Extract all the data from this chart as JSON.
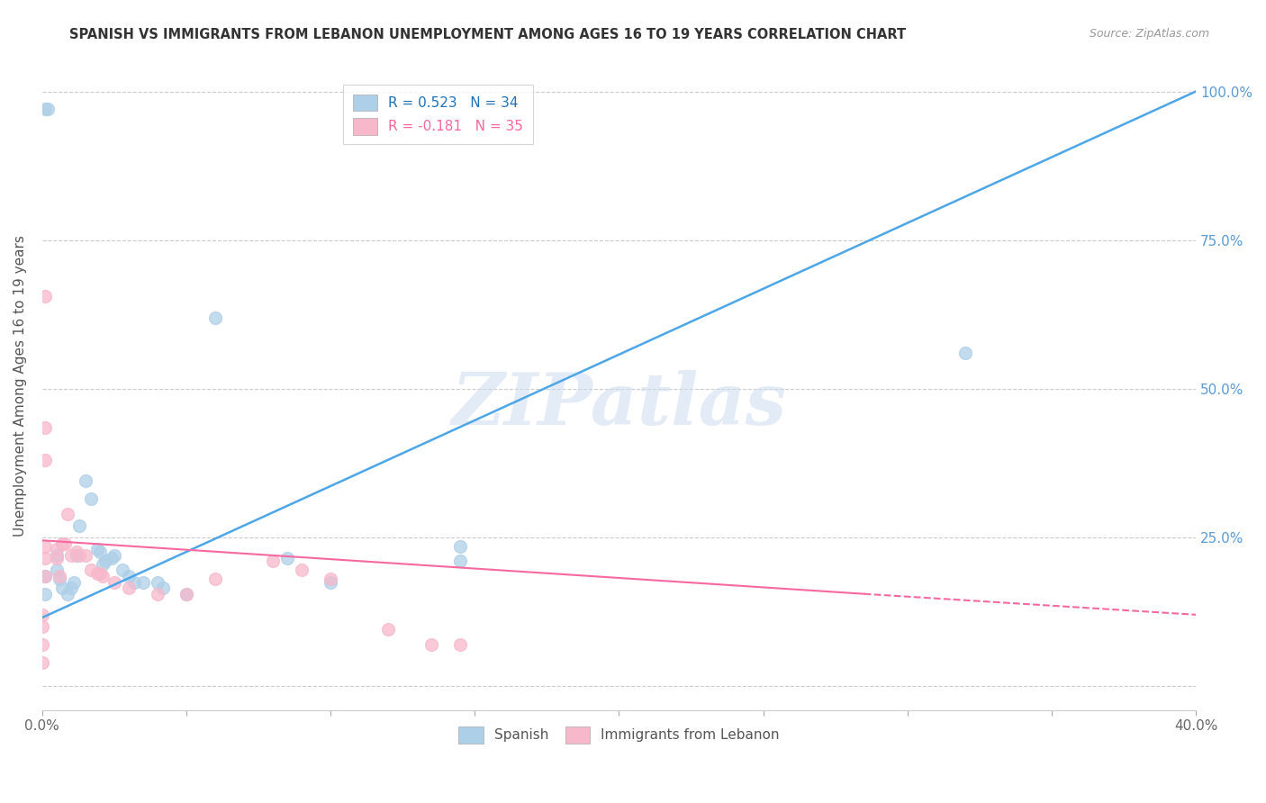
{
  "title": "SPANISH VS IMMIGRANTS FROM LEBANON UNEMPLOYMENT AMONG AGES 16 TO 19 YEARS CORRELATION CHART",
  "source": "Source: ZipAtlas.com",
  "ylabel": "Unemployment Among Ages 16 to 19 years",
  "xlim": [
    0.0,
    0.4
  ],
  "ylim": [
    -0.04,
    1.05
  ],
  "xticks": [
    0.0,
    0.05,
    0.1,
    0.15,
    0.2,
    0.25,
    0.3,
    0.35,
    0.4
  ],
  "xticklabels": [
    "0.0%",
    "",
    "",
    "",
    "",
    "",
    "",
    "",
    "40.0%"
  ],
  "yticks_right": [
    0.0,
    0.25,
    0.5,
    0.75,
    1.0
  ],
  "yticklabels_right": [
    "",
    "25.0%",
    "50.0%",
    "75.0%",
    "100.0%"
  ],
  "legend_entry1": "R = 0.523   N = 34",
  "legend_entry2": "R = -0.181   N = 35",
  "spanish_color": "#aecfe8",
  "lebanon_color": "#f7b8cb",
  "regression_blue_color": "#4da6e8",
  "regression_pink_color": "#f768a1",
  "watermark": "ZIPatlas",
  "spanish_points": [
    [
      0.001,
      0.185
    ],
    [
      0.001,
      0.155
    ],
    [
      0.001,
      0.97
    ],
    [
      0.002,
      0.97
    ],
    [
      0.005,
      0.22
    ],
    [
      0.005,
      0.195
    ],
    [
      0.006,
      0.18
    ],
    [
      0.007,
      0.165
    ],
    [
      0.009,
      0.155
    ],
    [
      0.01,
      0.165
    ],
    [
      0.011,
      0.175
    ],
    [
      0.012,
      0.22
    ],
    [
      0.013,
      0.27
    ],
    [
      0.015,
      0.345
    ],
    [
      0.017,
      0.315
    ],
    [
      0.019,
      0.23
    ],
    [
      0.02,
      0.225
    ],
    [
      0.021,
      0.205
    ],
    [
      0.022,
      0.21
    ],
    [
      0.024,
      0.215
    ],
    [
      0.025,
      0.22
    ],
    [
      0.028,
      0.195
    ],
    [
      0.03,
      0.185
    ],
    [
      0.032,
      0.175
    ],
    [
      0.035,
      0.175
    ],
    [
      0.04,
      0.175
    ],
    [
      0.042,
      0.165
    ],
    [
      0.05,
      0.155
    ],
    [
      0.06,
      0.62
    ],
    [
      0.085,
      0.215
    ],
    [
      0.1,
      0.175
    ],
    [
      0.145,
      0.21
    ],
    [
      0.145,
      0.235
    ],
    [
      0.32,
      0.56
    ]
  ],
  "lebanon_points": [
    [
      0.0,
      0.04
    ],
    [
      0.0,
      0.07
    ],
    [
      0.0,
      0.1
    ],
    [
      0.0,
      0.12
    ],
    [
      0.001,
      0.185
    ],
    [
      0.001,
      0.215
    ],
    [
      0.001,
      0.235
    ],
    [
      0.001,
      0.38
    ],
    [
      0.001,
      0.435
    ],
    [
      0.001,
      0.655
    ],
    [
      0.005,
      0.215
    ],
    [
      0.005,
      0.23
    ],
    [
      0.006,
      0.185
    ],
    [
      0.007,
      0.24
    ],
    [
      0.008,
      0.24
    ],
    [
      0.009,
      0.29
    ],
    [
      0.01,
      0.22
    ],
    [
      0.012,
      0.225
    ],
    [
      0.013,
      0.22
    ],
    [
      0.015,
      0.22
    ],
    [
      0.017,
      0.195
    ],
    [
      0.019,
      0.19
    ],
    [
      0.02,
      0.19
    ],
    [
      0.021,
      0.185
    ],
    [
      0.025,
      0.175
    ],
    [
      0.03,
      0.165
    ],
    [
      0.04,
      0.155
    ],
    [
      0.05,
      0.155
    ],
    [
      0.06,
      0.18
    ],
    [
      0.08,
      0.21
    ],
    [
      0.09,
      0.195
    ],
    [
      0.1,
      0.18
    ],
    [
      0.12,
      0.095
    ],
    [
      0.135,
      0.07
    ],
    [
      0.145,
      0.07
    ]
  ],
  "blue_line": {
    "x0": 0.0,
    "y0": 0.115,
    "x1": 0.4,
    "y1": 1.0
  },
  "pink_line_solid": {
    "x0": 0.0,
    "y0": 0.245,
    "x1": 0.285,
    "y1": 0.155
  },
  "pink_line_dashed": {
    "x0": 0.285,
    "y0": 0.155,
    "x1": 0.4,
    "y1": 0.12
  }
}
